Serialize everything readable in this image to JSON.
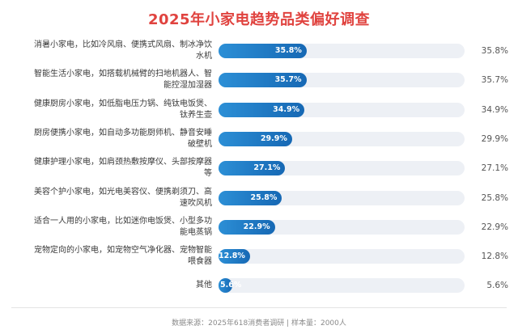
{
  "chart_data": {
    "type": "bar",
    "orientation": "horizontal",
    "title": "2025年小家电趋势品类偏好调查",
    "categories": [
      "消暑小家电，比如冷风扇、便携式风扇、制冰净饮水机",
      "智能生活小家电，如搭载机械臂的扫地机器人、智能控湿加湿器",
      "健康厨房小家电，如低脂电压力锅、纯钛电饭煲、钛养生壶",
      "厨房便携小家电，如自动多功能厨师机、静音安睡破壁机",
      "健康护理小家电，如肩颈热敷按摩仪、头部按摩器等",
      "美容个护小家电，如光电美容仪、便携剃须刀、高速吹风机",
      "适合一人用的小家电，比如迷你电饭煲、小型多功能电蒸锅",
      "宠物定向的小家电，如宠物空气净化器、宠物智能喂食器",
      "其他"
    ],
    "label_lines": [
      [
        "消暑小家电，比如冷风扇、便携式风扇、制冰净饮",
        "水机"
      ],
      [
        "智能生活小家电，如搭载机械臂的扫地机器人、智",
        "能控湿加湿器"
      ],
      [
        "健康厨房小家电，如低脂电压力锅、纯钛电饭煲、",
        "钛养生壶"
      ],
      [
        "厨房便携小家电，如自动多功能厨师机、静音安睡",
        "破壁机"
      ],
      [
        "健康护理小家电，如肩颈热敷按摩仪、头部按摩器",
        "等"
      ],
      [
        "美容个护小家电，如光电美容仪、便携剃须刀、高",
        "速吹风机"
      ],
      [
        "适合一人用的小家电，比如迷你电饭煲、小型多功",
        "能电蒸锅"
      ],
      [
        "宠物定向的小家电，如宠物空气净化器、宠物智能",
        "喂食器"
      ],
      [
        "其他"
      ]
    ],
    "values": [
      35.8,
      35.7,
      34.9,
      29.9,
      27.1,
      25.8,
      22.9,
      12.8,
      5.6
    ],
    "value_labels": [
      "35.8%",
      "35.7%",
      "34.9%",
      "29.9%",
      "27.1%",
      "25.8%",
      "22.9%",
      "12.8%",
      "5.6%"
    ],
    "xlim": [
      0,
      100
    ],
    "grid": false,
    "legend": "none",
    "bar_color": "#1f7cc8",
    "track_color": "#edf0f5",
    "title_color": "#e0433f"
  },
  "footer": "数据来源：2025年618消费者调研 | 样本量：2000人"
}
